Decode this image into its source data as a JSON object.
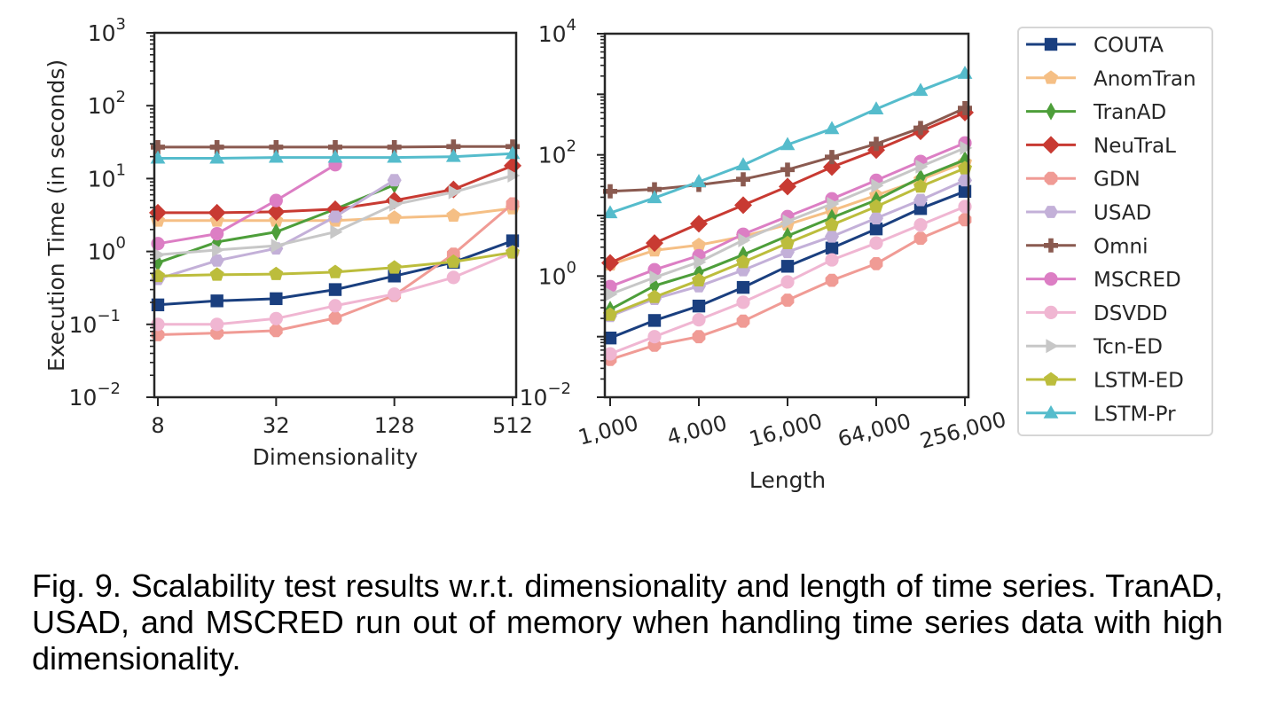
{
  "caption": "Fig. 9. Scalability test results w.r.t. dimensionality and length of time series. TranAD, USAD, and MSCRED run out of memory when handling time series data with high dimensionality.",
  "legend": {
    "placement": "right",
    "entries": [
      {
        "name": "COUTA",
        "color": "#1a3f7f",
        "marker": "square"
      },
      {
        "name": "AnomTran",
        "color": "#f5bf85",
        "marker": "pentagon"
      },
      {
        "name": "TranAD",
        "color": "#4d9e3a",
        "marker": "thin-diamond"
      },
      {
        "name": "NeuTraL",
        "color": "#c83a32",
        "marker": "diamond"
      },
      {
        "name": "GDN",
        "color": "#f09b95",
        "marker": "octagon"
      },
      {
        "name": "USAD",
        "color": "#c3b0d8",
        "marker": "hexagon"
      },
      {
        "name": "Omni",
        "color": "#8a5a50",
        "marker": "plus"
      },
      {
        "name": "MSCRED",
        "color": "#dc7ec4",
        "marker": "circle"
      },
      {
        "name": "DSVDD",
        "color": "#f0b6d2",
        "marker": "circle"
      },
      {
        "name": "Tcn-ED",
        "color": "#c7c7c7",
        "marker": "triangle-right"
      },
      {
        "name": "LSTM-ED",
        "color": "#bcbd3c",
        "marker": "pentagon"
      },
      {
        "name": "LSTM-Pr",
        "color": "#55bccc",
        "marker": "triangle-up"
      }
    ]
  },
  "chart_data": [
    {
      "type": "line",
      "title": "",
      "xlabel": "Dimensionality",
      "ylabel": "Execution Time (in seconds)",
      "xscale": "log2",
      "yscale": "log10",
      "x": [
        8,
        16,
        32,
        64,
        128,
        256,
        512
      ],
      "xticks": [
        8,
        32,
        128,
        512
      ],
      "xtick_labels": [
        "8",
        "32",
        "128",
        "512"
      ],
      "ylim": [
        0.01,
        1000
      ],
      "yticks": [
        {
          "base": "10",
          "exp": "3"
        },
        {
          "base": "10",
          "exp": "2"
        },
        {
          "base": "10",
          "exp": "1"
        },
        {
          "base": "10",
          "exp": "0"
        },
        {
          "base": "10",
          "exp": "−1"
        },
        {
          "base": "10",
          "exp": "−2"
        }
      ],
      "grid": false,
      "series": [
        {
          "name": "COUTA",
          "values": [
            0.185,
            0.21,
            0.225,
            0.3,
            0.46,
            0.71,
            1.4
          ]
        },
        {
          "name": "AnomTran",
          "values": [
            2.65,
            2.65,
            2.65,
            2.65,
            2.9,
            3.1,
            3.9
          ]
        },
        {
          "name": "TranAD",
          "values": [
            0.7,
            1.35,
            1.85,
            3.8,
            8.2,
            null,
            null
          ]
        },
        {
          "name": "NeuTraL",
          "values": [
            3.4,
            3.4,
            3.5,
            3.8,
            5.0,
            7.1,
            15
          ]
        },
        {
          "name": "GDN",
          "values": [
            0.072,
            0.076,
            0.082,
            0.122,
            0.25,
            0.92,
            4.5
          ]
        },
        {
          "name": "USAD",
          "values": [
            0.42,
            0.75,
            1.1,
            3.0,
            9.5,
            null,
            null
          ]
        },
        {
          "name": "Omni",
          "values": [
            27,
            27,
            27,
            27,
            27,
            27.5,
            27.5
          ]
        },
        {
          "name": "MSCRED",
          "values": [
            1.28,
            1.75,
            5.0,
            15.5,
            null,
            null,
            null
          ]
        },
        {
          "name": "DSVDD",
          "values": [
            0.1,
            0.1,
            0.12,
            0.18,
            0.26,
            0.44,
            0.97
          ]
        },
        {
          "name": "Tcn-ED",
          "values": [
            0.9,
            1.05,
            1.2,
            1.85,
            4.4,
            6.5,
            11
          ]
        },
        {
          "name": "LSTM-ED",
          "values": [
            0.46,
            0.48,
            0.49,
            0.52,
            0.6,
            0.72,
            0.97
          ]
        },
        {
          "name": "LSTM-Pr",
          "values": [
            19,
            19,
            19.5,
            19.5,
            19.5,
            20,
            22
          ]
        }
      ]
    },
    {
      "type": "line",
      "title": "",
      "xlabel": "Length",
      "ylabel": "",
      "xscale": "log2",
      "yscale": "log10",
      "x": [
        1000,
        2000,
        4000,
        8000,
        16000,
        32000,
        64000,
        128000,
        256000
      ],
      "xticks": [
        1000,
        4000,
        16000,
        64000,
        256000
      ],
      "xtick_labels": [
        "1,000",
        "4,000",
        "16,000",
        "64,000",
        "256,000"
      ],
      "ylim": [
        0.01,
        10000
      ],
      "yticks": [
        {
          "base": "10",
          "exp": "4"
        },
        {
          "base": "10",
          "exp": "2"
        },
        {
          "base": "10",
          "exp": "0"
        },
        {
          "base": "10",
          "exp": "−2"
        }
      ],
      "grid": false,
      "series": [
        {
          "name": "COUTA",
          "values": [
            0.095,
            0.185,
            0.32,
            0.65,
            1.45,
            2.9,
            6.0,
            13,
            25
          ]
        },
        {
          "name": "AnomTran",
          "values": [
            1.55,
            2.65,
            3.25,
            4.5,
            7.1,
            12,
            21.5,
            39,
            75
          ]
        },
        {
          "name": "TranAD",
          "values": [
            0.28,
            0.69,
            1.15,
            2.25,
            4.6,
            9.2,
            18,
            42,
            83
          ]
        },
        {
          "name": "NeuTraL",
          "values": [
            1.65,
            3.5,
            7.3,
            14.8,
            30,
            63,
            120,
            245,
            500
          ]
        },
        {
          "name": "GDN",
          "values": [
            0.042,
            0.072,
            0.1,
            0.18,
            0.4,
            0.85,
            1.6,
            4.2,
            8.5
          ]
        },
        {
          "name": "USAD",
          "values": [
            0.22,
            0.42,
            0.68,
            1.25,
            2.5,
            4.5,
            9,
            18,
            38
          ]
        },
        {
          "name": "Omni",
          "values": [
            25,
            27,
            32,
            39.5,
            57,
            92,
            152,
            277,
            590
          ]
        },
        {
          "name": "MSCRED",
          "values": [
            0.67,
            1.27,
            2.17,
            4.9,
            9.6,
            18.8,
            38,
            78,
            157
          ]
        },
        {
          "name": "DSVDD",
          "values": [
            0.052,
            0.1,
            0.19,
            0.37,
            0.8,
            1.85,
            3.5,
            7,
            14
          ]
        },
        {
          "name": "Tcn-ED",
          "values": [
            0.5,
            0.95,
            1.7,
            3.9,
            8,
            15.5,
            31,
            64,
            130
          ]
        },
        {
          "name": "LSTM-ED",
          "values": [
            0.23,
            0.45,
            0.85,
            1.7,
            3.5,
            7,
            14,
            30,
            60
          ]
        },
        {
          "name": "LSTM-Pr",
          "values": [
            11,
            19.5,
            36,
            68,
            147,
            270,
            570,
            1150,
            2200
          ]
        }
      ]
    }
  ]
}
